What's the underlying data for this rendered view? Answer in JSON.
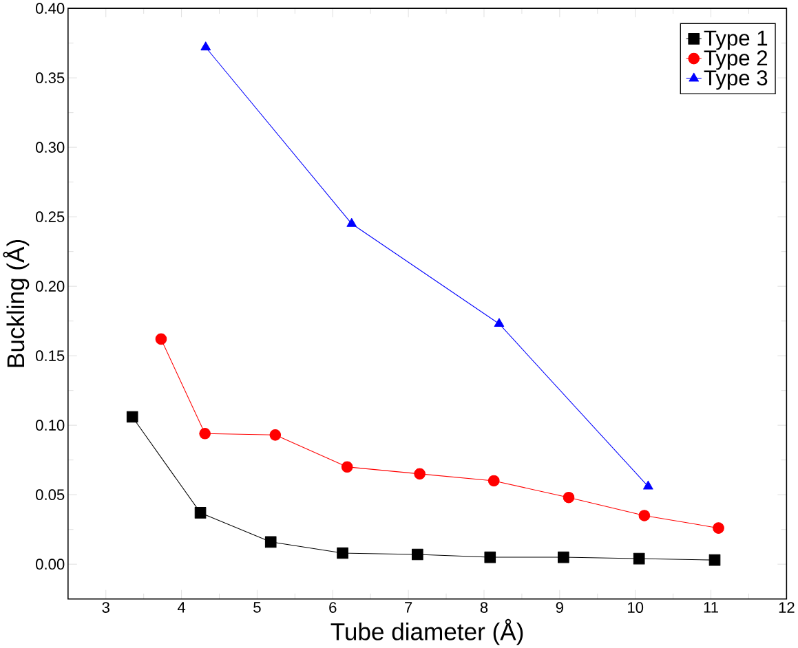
{
  "chart_data": {
    "type": "line",
    "xlabel": "Tube diameter (Å)",
    "ylabel": "Buckling (Å)",
    "xlim": [
      2.5,
      12
    ],
    "ylim": [
      -0.025,
      0.4
    ],
    "xticks": [
      3,
      4,
      5,
      6,
      7,
      8,
      9,
      10,
      11,
      12
    ],
    "yticks": [
      {
        "value": 0,
        "label": "0.00"
      },
      0.05,
      {
        "value": 0.1,
        "label": "0.10"
      },
      0.15,
      {
        "value": 0.2,
        "label": "0.20"
      },
      0.25,
      {
        "value": 0.3,
        "label": "0.30"
      },
      0.35,
      {
        "value": 0.4,
        "label": "0.40"
      }
    ],
    "legend": "top right",
    "grid": false,
    "series": [
      {
        "name": "Type 1",
        "color": "#000000",
        "marker": "square",
        "x": [
          3.35,
          4.25,
          5.18,
          6.13,
          7.12,
          8.08,
          9.05,
          10.05,
          11.05
        ],
        "values": [
          0.106,
          0.037,
          0.016,
          0.008,
          0.007,
          0.005,
          0.005,
          0.004,
          0.003
        ]
      },
      {
        "name": "Type 2",
        "color": "#ff0000",
        "marker": "circle",
        "x": [
          3.73,
          4.31,
          5.24,
          6.19,
          7.15,
          8.13,
          9.12,
          10.12,
          11.1
        ],
        "values": [
          0.162,
          0.094,
          0.093,
          0.07,
          0.065,
          0.06,
          0.048,
          0.035,
          0.026
        ]
      },
      {
        "name": "Type 3",
        "color": "#0000ff",
        "marker": "triangle",
        "x": [
          4.32,
          6.25,
          8.2,
          10.17
        ],
        "values": [
          0.372,
          0.245,
          0.173,
          0.056
        ]
      }
    ]
  }
}
